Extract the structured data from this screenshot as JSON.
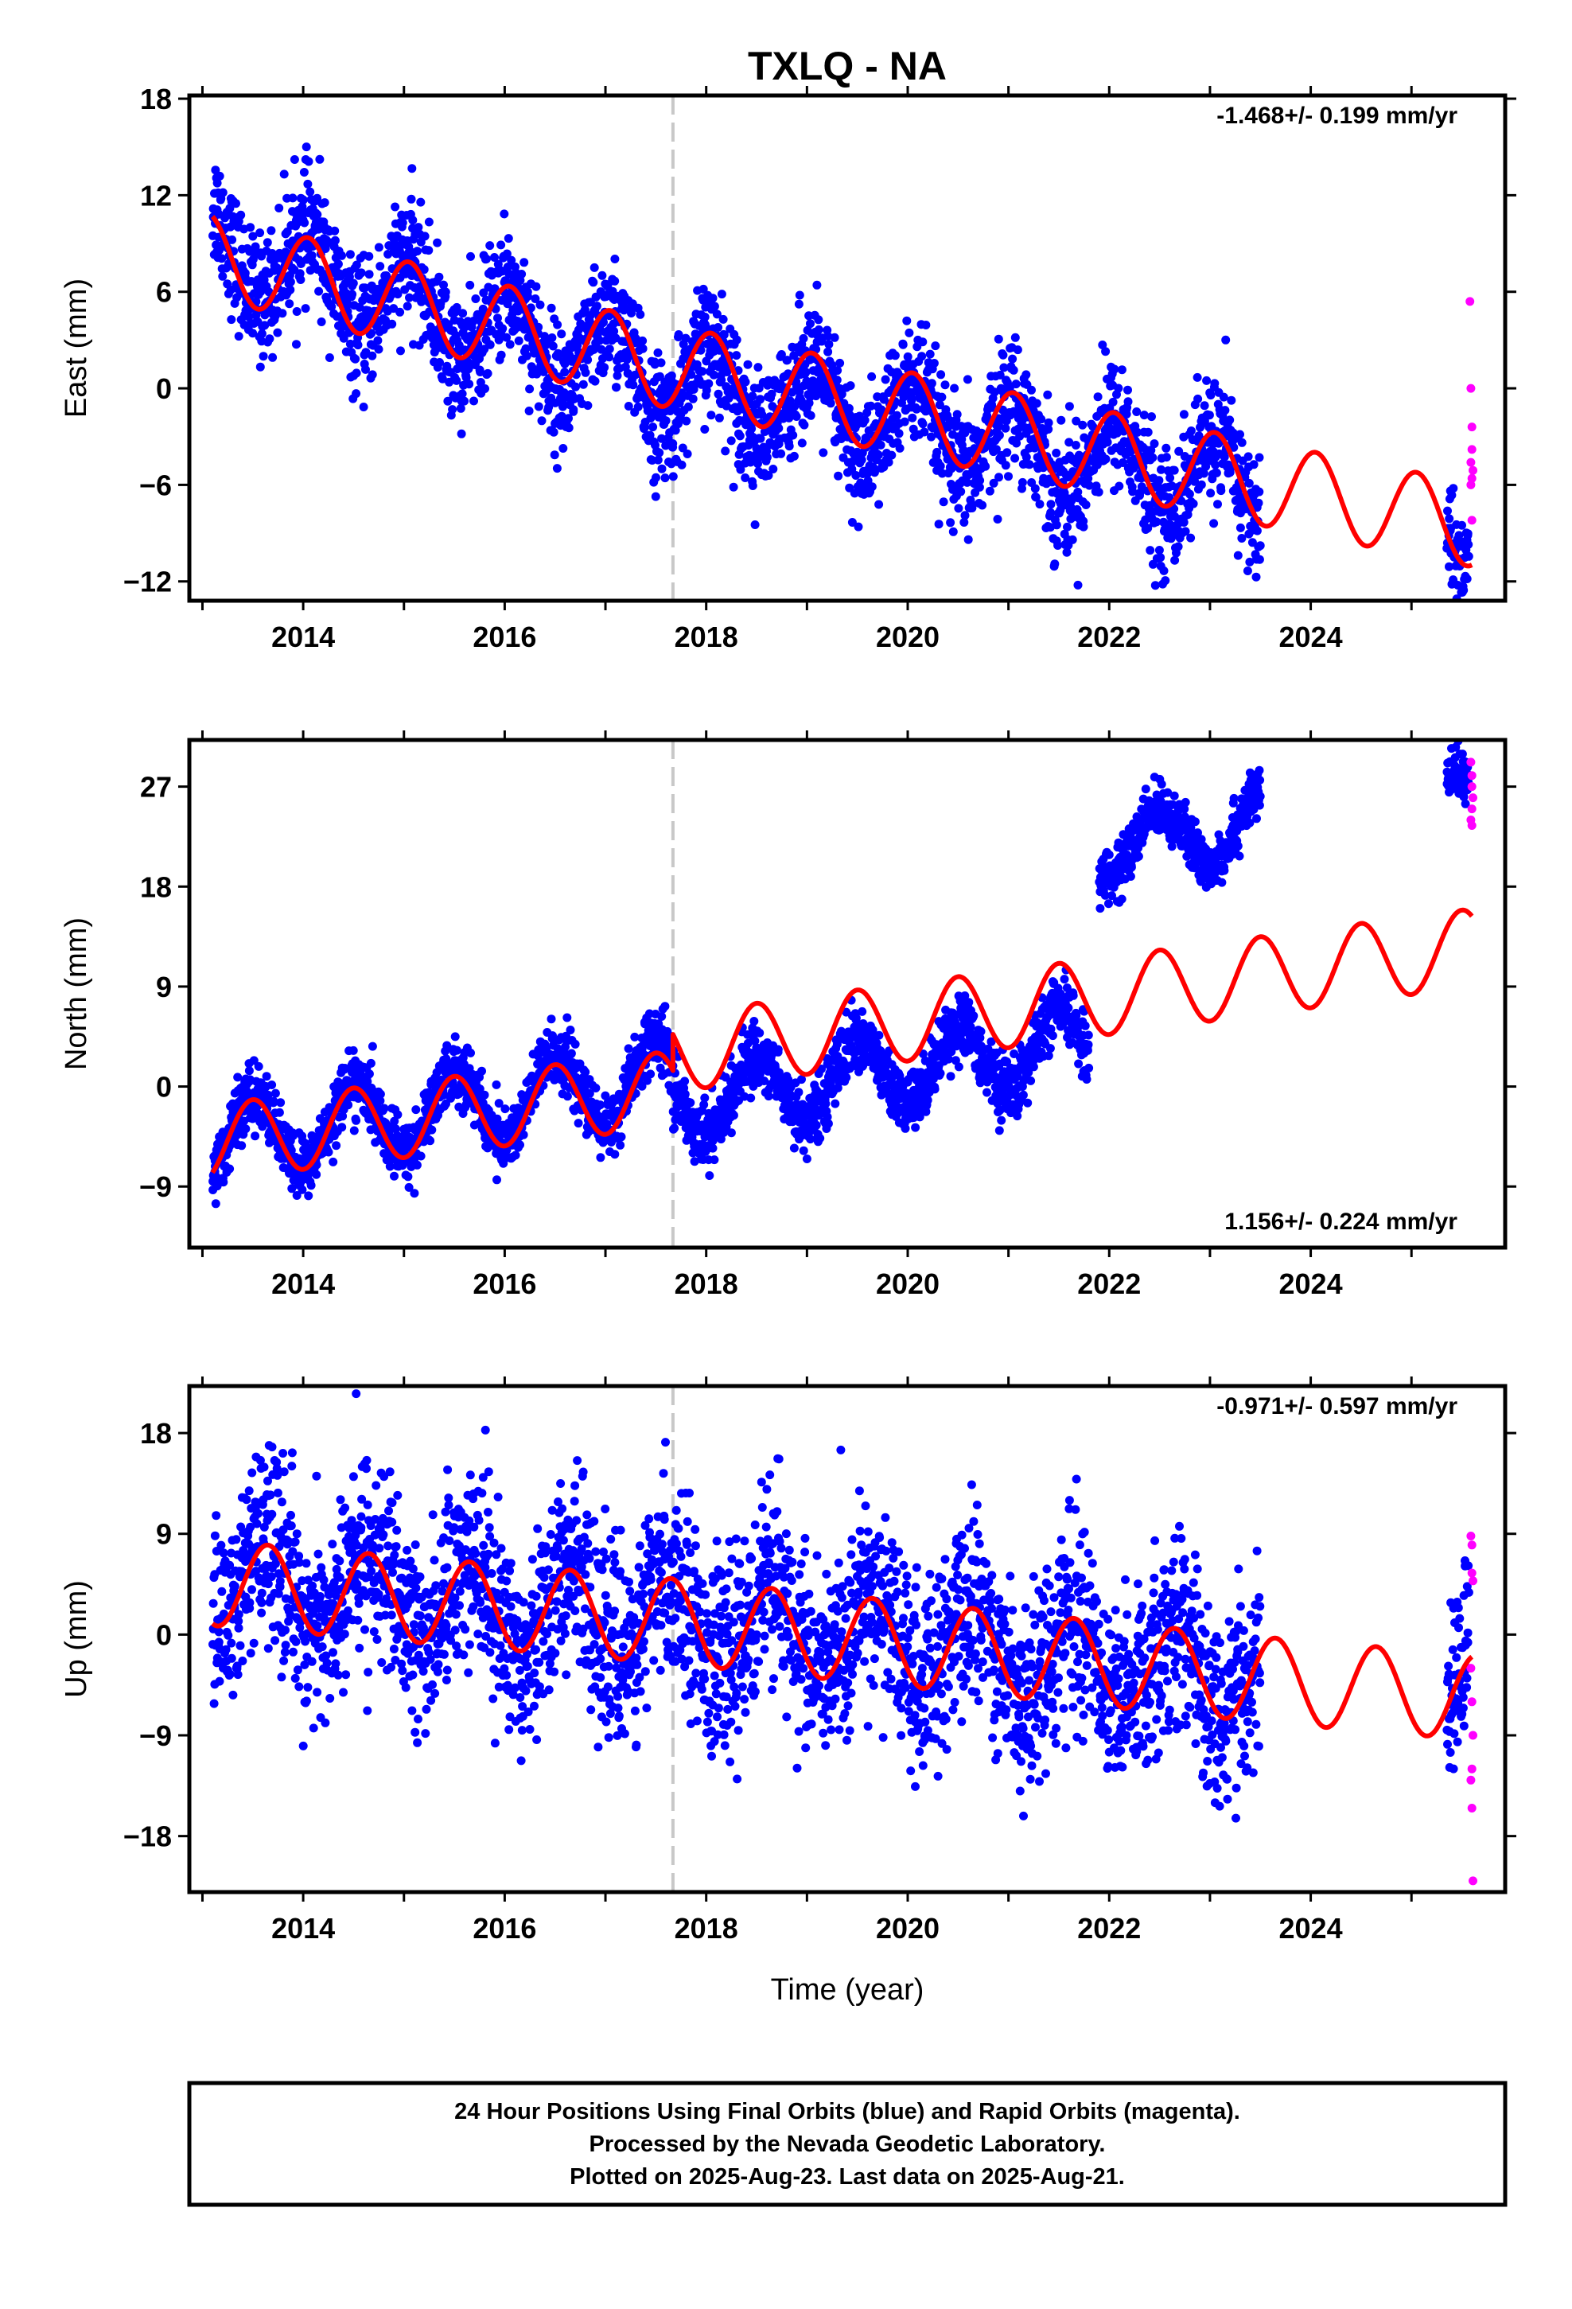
{
  "title": "TXLQ - NA",
  "xlabel": "Time (year)",
  "colors": {
    "final": "#0000ff",
    "rapid": "#ff00ff",
    "model": "#ff0000",
    "offset_line": "#c8c8c8"
  },
  "footer": [
    "24 Hour Positions Using Final Orbits (blue) and Rapid Orbits (magenta).",
    "Processed by the Nevada Geodetic Laboratory.",
    "Plotted on 2025-Aug-23. Last data on 2025-Aug-21."
  ],
  "chart_data": [
    {
      "type": "scatter",
      "ylabel": "East (mm)",
      "rate": "-1.468+/- 0.199 mm/yr",
      "xlim": [
        2012.87,
        2025.93
      ],
      "ylim": [
        -13.2,
        18.2
      ],
      "yticks": [
        -12,
        -6,
        0,
        6,
        12,
        18
      ],
      "xticks": [
        2014,
        2016,
        2018,
        2020,
        2022,
        2024
      ],
      "offset_year": 2017.67,
      "data_gap": [
        2023.5,
        2025.35
      ],
      "series": [
        {
          "name": "Final Orbits (blue)",
          "trend": [
            [
              2013.1,
              9.0
            ],
            [
              2017.67,
              0.4
            ],
            [
              2023.5,
              -6.2
            ],
            [
              2025.6,
              -8.6
            ]
          ],
          "amplitude": 2.6,
          "scatter_sd": 1.9,
          "count": 3300
        },
        {
          "name": "Rapid Orbits (magenta)",
          "points": [
            [
              2025.58,
              5.4
            ],
            [
              2025.59,
              0.0
            ],
            [
              2025.6,
              -2.4
            ],
            [
              2025.6,
              -3.8
            ],
            [
              2025.59,
              -4.6
            ],
            [
              2025.61,
              -5.1
            ],
            [
              2025.6,
              -5.6
            ],
            [
              2025.59,
              -6.0
            ],
            [
              2025.6,
              -8.2
            ]
          ]
        }
      ],
      "model": {
        "trend": [
          [
            2013.1,
            8.2
          ],
          [
            2017.67,
            1.3
          ],
          [
            2023.5,
            -5.9
          ],
          [
            2025.6,
            -8.5
          ]
        ],
        "amplitude": 2.6,
        "phase_peak_year_frac": 0.05
      }
    },
    {
      "type": "scatter",
      "ylabel": "North (mm)",
      "rate": "1.156+/- 0.224 mm/yr",
      "xlim": [
        2012.87,
        2025.93
      ],
      "ylim": [
        -14.5,
        31.2
      ],
      "yticks": [
        -9,
        0,
        9,
        18,
        27
      ],
      "xticks": [
        2014,
        2016,
        2018,
        2020,
        2022,
        2024
      ],
      "offset_year": 2017.67,
      "data_gap": [
        2023.5,
        2025.35
      ],
      "series": [
        {
          "name": "Final Orbits (blue)",
          "segments": [
            {
              "from": 2013.1,
              "to": 2017.67,
              "trend": [
                -5.0,
                0.8
              ],
              "amplitude": 3.5,
              "scatter_sd": 1.4
            },
            {
              "from": 2017.67,
              "to": 2021.8,
              "trend": [
                -1.5,
                4.0
              ],
              "amplitude": 3.2,
              "scatter_sd": 1.4
            },
            {
              "from": 2021.9,
              "to": 2023.5,
              "trend": [
                21.5,
                23.5
              ],
              "amplitude": 2.8,
              "scatter_sd": 1.2
            },
            {
              "from": 2025.35,
              "to": 2025.57,
              "trend": [
                27.5,
                27.8
              ],
              "amplitude": 0.5,
              "scatter_sd": 1.0
            }
          ],
          "count": 3300
        },
        {
          "name": "Rapid Orbits (magenta)",
          "points": [
            [
              2025.59,
              29.2
            ],
            [
              2025.6,
              28.0
            ],
            [
              2025.6,
              27.0
            ],
            [
              2025.61,
              26.0
            ],
            [
              2025.6,
              25.0
            ],
            [
              2025.59,
              24.0
            ],
            [
              2025.6,
              23.5
            ]
          ]
        }
      ],
      "model": {
        "segments": [
          {
            "from": 2013.1,
            "to": 2017.67,
            "trend": [
              -5.0,
              -0.2
            ],
            "amplitude": 3.4
          },
          {
            "from": 2017.67,
            "to": 2025.6,
            "trend": [
              3.0,
              12.5
            ],
            "amplitude": 3.5
          }
        ],
        "phase_peak_year_frac": 0.5
      }
    },
    {
      "type": "scatter",
      "ylabel": "Up (mm)",
      "rate": "-0.971+/- 0.597 mm/yr",
      "xlim": [
        2012.87,
        2025.93
      ],
      "ylim": [
        -23.0,
        22.2
      ],
      "yticks": [
        -18,
        -9,
        0,
        9,
        18
      ],
      "xticks": [
        2014,
        2016,
        2018,
        2020,
        2022,
        2024
      ],
      "offset_year": 2017.67,
      "data_gap": [
        2023.5,
        2025.35
      ],
      "series": [
        {
          "name": "Final Orbits (blue)",
          "trend": [
            [
              2013.1,
              4.8
            ],
            [
              2017.67,
              1.5
            ],
            [
              2023.5,
              -3.8
            ],
            [
              2025.6,
              -5.5
            ]
          ],
          "amplitude": 3.8,
          "scatter_sd": 4.2,
          "count": 3300
        },
        {
          "name": "Rapid Orbits (magenta)",
          "points": [
            [
              2025.59,
              8.8
            ],
            [
              2025.6,
              8.0
            ],
            [
              2025.6,
              5.5
            ],
            [
              2025.61,
              4.8
            ],
            [
              2025.59,
              -3.0
            ],
            [
              2025.6,
              -6.0
            ],
            [
              2025.61,
              -9.0
            ],
            [
              2025.6,
              -12.0
            ],
            [
              2025.59,
              -13.0
            ],
            [
              2025.6,
              -15.5
            ],
            [
              2025.61,
              -22.0
            ]
          ]
        }
      ],
      "model": {
        "trend": [
          [
            2013.1,
            4.6
          ],
          [
            2017.67,
            1.2
          ],
          [
            2023.5,
            -4.0
          ],
          [
            2025.6,
            -5.6
          ]
        ],
        "amplitude": 3.8,
        "phase_peak_year_frac": 0.65
      }
    }
  ]
}
